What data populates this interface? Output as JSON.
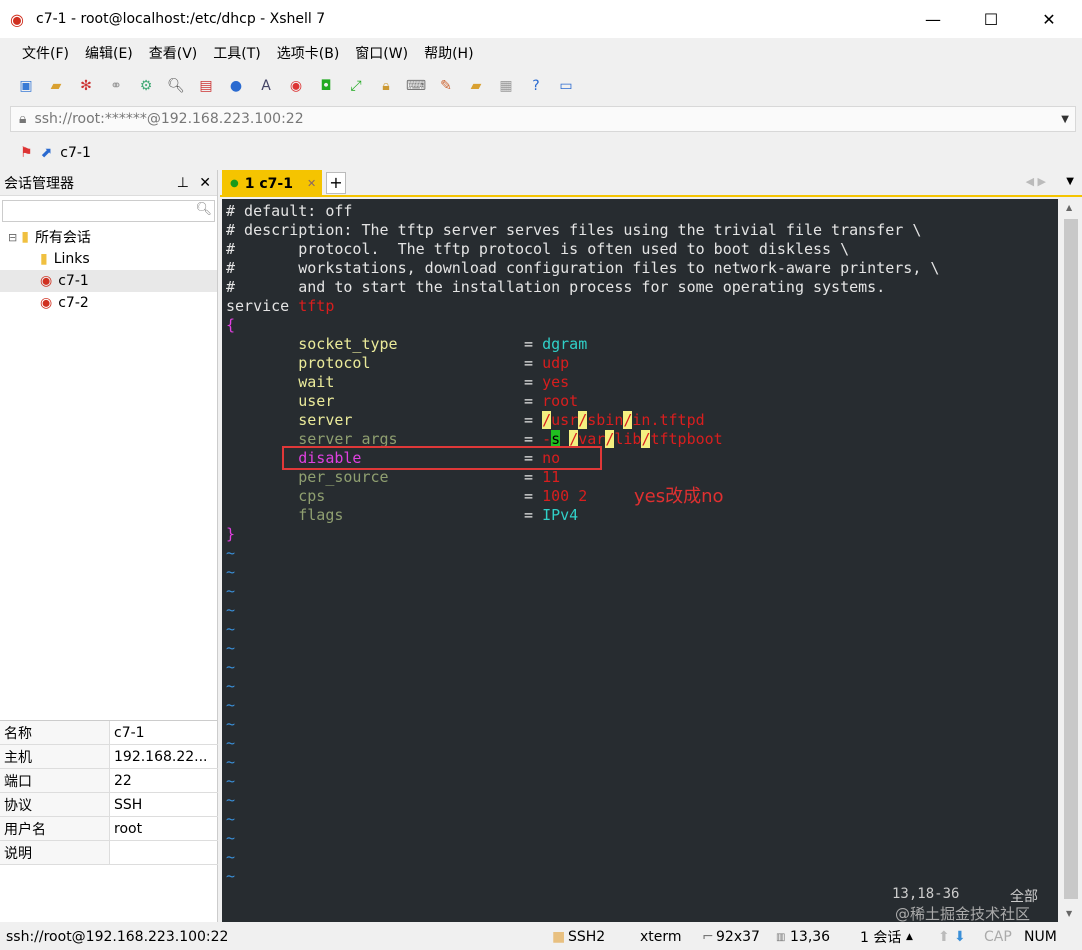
{
  "window": {
    "title": "c7-1 - root@localhost:/etc/dhcp - Xshell 7"
  },
  "menu": [
    "文件(F)",
    "编辑(E)",
    "查看(V)",
    "工具(T)",
    "选项卡(B)",
    "窗口(W)",
    "帮助(H)"
  ],
  "address": "ssh://root:******@192.168.223.100:22",
  "session_bar": {
    "label": "c7-1"
  },
  "session_manager": {
    "title": "会话管理器",
    "pin": "⊥",
    "close": "✕",
    "tree": [
      {
        "label": "所有会话",
        "icon": "folder-icon",
        "level": 0
      },
      {
        "label": "Links",
        "icon": "folder-icon",
        "level": 1
      },
      {
        "label": "c7-1",
        "icon": "session-icon",
        "level": 1
      },
      {
        "label": "c7-2",
        "icon": "session-icon",
        "level": 1
      }
    ],
    "props": [
      [
        "名称",
        "c7-1"
      ],
      [
        "主机",
        "192.168.22..."
      ],
      [
        "端口",
        "22"
      ],
      [
        "协议",
        "SSH"
      ],
      [
        "用户名",
        "root"
      ],
      [
        "说明",
        ""
      ]
    ]
  },
  "tab": {
    "label": "1 c7-1",
    "add": "+"
  },
  "terminal": {
    "lines": [
      [
        [
          "w",
          "# default: off"
        ]
      ],
      [
        [
          "w",
          "# description: The tftp server serves files using the trivial file transfer \\"
        ]
      ],
      [
        [
          "w",
          "#       protocol.  The tftp protocol is often used to boot diskless \\"
        ]
      ],
      [
        [
          "w",
          "#       workstations, download configuration files to network-aware printers, \\"
        ]
      ],
      [
        [
          "w",
          "#       and to start the installation process for some operating systems."
        ]
      ],
      [
        [
          "w",
          "service "
        ],
        [
          "r",
          "tftp"
        ]
      ],
      [
        [
          "m",
          "{"
        ]
      ],
      [
        [
          "y",
          "        socket_type"
        ],
        [
          "w",
          "              = "
        ],
        [
          "c",
          "dgram"
        ]
      ],
      [
        [
          "y",
          "        protocol"
        ],
        [
          "w",
          "                 = "
        ],
        [
          "r",
          "udp"
        ]
      ],
      [
        [
          "y",
          "        wait"
        ],
        [
          "w",
          "                     = "
        ],
        [
          "r",
          "yes"
        ]
      ],
      [
        [
          "y",
          "        user"
        ],
        [
          "w",
          "                     = "
        ],
        [
          "r",
          "root"
        ]
      ],
      [
        [
          "y",
          "        server"
        ],
        [
          "w",
          "                   = "
        ],
        [
          "hl-y",
          "/"
        ],
        [
          "r",
          "usr"
        ],
        [
          "hl-y",
          "/"
        ],
        [
          "r",
          "sbin"
        ],
        [
          "hl-y",
          "/"
        ],
        [
          "r",
          "in.tftpd"
        ]
      ],
      [
        [
          "g",
          "        server_args"
        ],
        [
          "w",
          "              = "
        ],
        [
          "r",
          "-"
        ],
        [
          "hl-g",
          "s"
        ],
        [
          "w",
          " "
        ],
        [
          "hl-y",
          "/"
        ],
        [
          "r",
          "var"
        ],
        [
          "hl-y",
          "/"
        ],
        [
          "r",
          "lib"
        ],
        [
          "hl-y",
          "/"
        ],
        [
          "r",
          "tftpboot"
        ]
      ],
      [
        [
          "m",
          "        disable"
        ],
        [
          "w",
          "                  = "
        ],
        [
          "r",
          "no"
        ]
      ],
      [
        [
          "g",
          "        per_source"
        ],
        [
          "w",
          "               = "
        ],
        [
          "r",
          "11"
        ]
      ],
      [
        [
          "g",
          "        cps"
        ],
        [
          "w",
          "                      = "
        ],
        [
          "r",
          "100 2"
        ]
      ],
      [
        [
          "g",
          "        flags"
        ],
        [
          "w",
          "                    = "
        ],
        [
          "c",
          "IPv4"
        ]
      ],
      [
        [
          "m",
          "}"
        ]
      ],
      [
        [
          "t",
          "~"
        ]
      ],
      [
        [
          "t",
          "~"
        ]
      ],
      [
        [
          "t",
          "~"
        ]
      ],
      [
        [
          "t",
          "~"
        ]
      ],
      [
        [
          "t",
          "~"
        ]
      ],
      [
        [
          "t",
          "~"
        ]
      ],
      [
        [
          "t",
          "~"
        ]
      ],
      [
        [
          "t",
          "~"
        ]
      ],
      [
        [
          "t",
          "~"
        ]
      ],
      [
        [
          "t",
          "~"
        ]
      ],
      [
        [
          "t",
          "~"
        ]
      ],
      [
        [
          "t",
          "~"
        ]
      ],
      [
        [
          "t",
          "~"
        ]
      ],
      [
        [
          "t",
          "~"
        ]
      ],
      [
        [
          "t",
          "~"
        ]
      ],
      [
        [
          "t",
          "~"
        ]
      ],
      [
        [
          "t",
          "~"
        ]
      ],
      [
        [
          "t",
          "~"
        ]
      ]
    ],
    "cursor_pos": "13,18-36",
    "scroll_pos": "全部"
  },
  "annotation": "yes改成no",
  "watermark": "@稀土掘金技术社区",
  "status": {
    "conn": "ssh://root@192.168.223.100:22",
    "proto": "SSH2",
    "term": "xterm",
    "size": "92x37",
    "cursor": "13,36",
    "sessions": "1 会话",
    "cap": "CAP",
    "num": "NUM"
  }
}
